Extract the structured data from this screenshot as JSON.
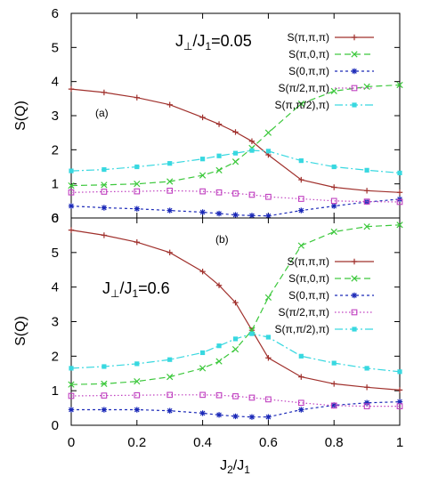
{
  "colors": {
    "s_pi_pi_pi": "#a0302c",
    "s_pi_0_pi": "#3cc83c",
    "s_0_pi_pi": "#1c2ab8",
    "s_pihalf_pi_pi": "#c040c0",
    "s_pi_pihalf_pi": "#38d8e0"
  },
  "chart_data": [
    {
      "type": "line",
      "panel": "(a)",
      "annotation_prefix": "J",
      "annotation_perp": "⊥",
      "annotation_mid": "/J",
      "annotation_sub": "1",
      "annotation_value": "=0.05",
      "ylabel_main": "S(Q)",
      "xlim": [
        0,
        1
      ],
      "ylim": [
        0,
        6
      ],
      "yticks": [
        "0",
        "1",
        "2",
        "3",
        "4",
        "5",
        "6"
      ],
      "legend_position": "top-right",
      "series": [
        {
          "name": "S(π,π,π)",
          "marker": "plus",
          "dash": "",
          "x": [
            0,
            0.1,
            0.2,
            0.3,
            0.4,
            0.45,
            0.5,
            0.55,
            0.6,
            0.7,
            0.8,
            0.9,
            1.0
          ],
          "y": [
            3.78,
            3.68,
            3.53,
            3.32,
            2.95,
            2.75,
            2.52,
            2.25,
            1.85,
            1.12,
            0.9,
            0.8,
            0.75
          ]
        },
        {
          "name": "S(π,0,π)",
          "marker": "x",
          "dash": "7 4",
          "x": [
            0,
            0.1,
            0.2,
            0.3,
            0.4,
            0.45,
            0.5,
            0.55,
            0.6,
            0.7,
            0.8,
            0.9,
            1.0
          ],
          "y": [
            0.95,
            0.97,
            1.0,
            1.07,
            1.25,
            1.4,
            1.65,
            2.05,
            2.5,
            3.35,
            3.72,
            3.85,
            3.9
          ]
        },
        {
          "name": "S(0,π,π)",
          "marker": "star",
          "dash": "3 3",
          "x": [
            0,
            0.1,
            0.2,
            0.3,
            0.4,
            0.45,
            0.5,
            0.55,
            0.6,
            0.7,
            0.8,
            0.9,
            1.0
          ],
          "y": [
            0.35,
            0.3,
            0.27,
            0.22,
            0.17,
            0.13,
            0.09,
            0.07,
            0.06,
            0.22,
            0.35,
            0.47,
            0.55
          ]
        },
        {
          "name": "S(π/2,π,π)",
          "marker": "square-open",
          "dash": "1.5 2.5",
          "x": [
            0,
            0.1,
            0.2,
            0.3,
            0.4,
            0.45,
            0.5,
            0.55,
            0.6,
            0.7,
            0.8,
            0.9,
            1.0
          ],
          "y": [
            0.75,
            0.77,
            0.78,
            0.8,
            0.78,
            0.75,
            0.72,
            0.68,
            0.62,
            0.56,
            0.5,
            0.48,
            0.47
          ]
        },
        {
          "name": "S(π,π/2),π)",
          "marker": "square-filled",
          "dash": "9 3 2 3",
          "x": [
            0,
            0.1,
            0.2,
            0.3,
            0.4,
            0.45,
            0.5,
            0.55,
            0.6,
            0.7,
            0.8,
            0.9,
            1.0
          ],
          "y": [
            1.38,
            1.42,
            1.5,
            1.6,
            1.73,
            1.82,
            1.9,
            1.98,
            1.96,
            1.68,
            1.5,
            1.4,
            1.32
          ]
        }
      ]
    },
    {
      "type": "line",
      "panel": "(b)",
      "annotation_prefix": "J",
      "annotation_perp": "⊥",
      "annotation_mid": "/J",
      "annotation_sub": "1",
      "annotation_value": "=0.6",
      "ylabel_main": "S(Q)",
      "xlabel_main": "J",
      "xlabel_sub1": "2",
      "xlabel_mid": "/J",
      "xlabel_sub2": "1",
      "xlim": [
        0,
        1
      ],
      "ylim": [
        0,
        6
      ],
      "yticks": [
        "0",
        "1",
        "2",
        "3",
        "4",
        "5",
        "6"
      ],
      "xticks": [
        "0",
        "0.2",
        "0.4",
        "0.6",
        "0.8",
        "1"
      ],
      "legend_position": "top-right",
      "series": [
        {
          "name": "S(π,π,π)",
          "marker": "plus",
          "dash": "",
          "x": [
            0,
            0.1,
            0.2,
            0.3,
            0.4,
            0.45,
            0.5,
            0.55,
            0.6,
            0.7,
            0.8,
            0.9,
            1.0
          ],
          "y": [
            5.65,
            5.5,
            5.3,
            5.0,
            4.45,
            4.05,
            3.55,
            2.75,
            1.95,
            1.4,
            1.2,
            1.1,
            1.02
          ]
        },
        {
          "name": "S(π,0,π)",
          "marker": "x",
          "dash": "7 4",
          "x": [
            0,
            0.1,
            0.2,
            0.3,
            0.4,
            0.45,
            0.5,
            0.55,
            0.6,
            0.7,
            0.8,
            0.9,
            1.0
          ],
          "y": [
            1.18,
            1.2,
            1.27,
            1.4,
            1.65,
            1.85,
            2.2,
            2.75,
            3.7,
            5.2,
            5.6,
            5.75,
            5.8
          ]
        },
        {
          "name": "S(0,π,π)",
          "marker": "star",
          "dash": "3 3",
          "x": [
            0,
            0.1,
            0.2,
            0.3,
            0.4,
            0.45,
            0.5,
            0.55,
            0.6,
            0.7,
            0.8,
            0.9,
            1.0
          ],
          "y": [
            0.45,
            0.45,
            0.45,
            0.42,
            0.35,
            0.3,
            0.26,
            0.24,
            0.24,
            0.45,
            0.58,
            0.65,
            0.68
          ]
        },
        {
          "name": "S(π/2,π,π)",
          "marker": "square-open",
          "dash": "1.5 2.5",
          "x": [
            0,
            0.1,
            0.2,
            0.3,
            0.4,
            0.45,
            0.5,
            0.55,
            0.6,
            0.7,
            0.8,
            0.9,
            1.0
          ],
          "y": [
            0.85,
            0.86,
            0.87,
            0.88,
            0.88,
            0.87,
            0.84,
            0.8,
            0.75,
            0.65,
            0.57,
            0.55,
            0.55
          ]
        },
        {
          "name": "S(π,π/2),π)",
          "marker": "square-filled",
          "dash": "9 3 2 3",
          "x": [
            0,
            0.1,
            0.2,
            0.3,
            0.4,
            0.45,
            0.5,
            0.55,
            0.6,
            0.7,
            0.8,
            0.9,
            1.0
          ],
          "y": [
            1.65,
            1.7,
            1.78,
            1.9,
            2.1,
            2.3,
            2.5,
            2.65,
            2.55,
            2.0,
            1.8,
            1.65,
            1.55
          ]
        }
      ]
    }
  ]
}
